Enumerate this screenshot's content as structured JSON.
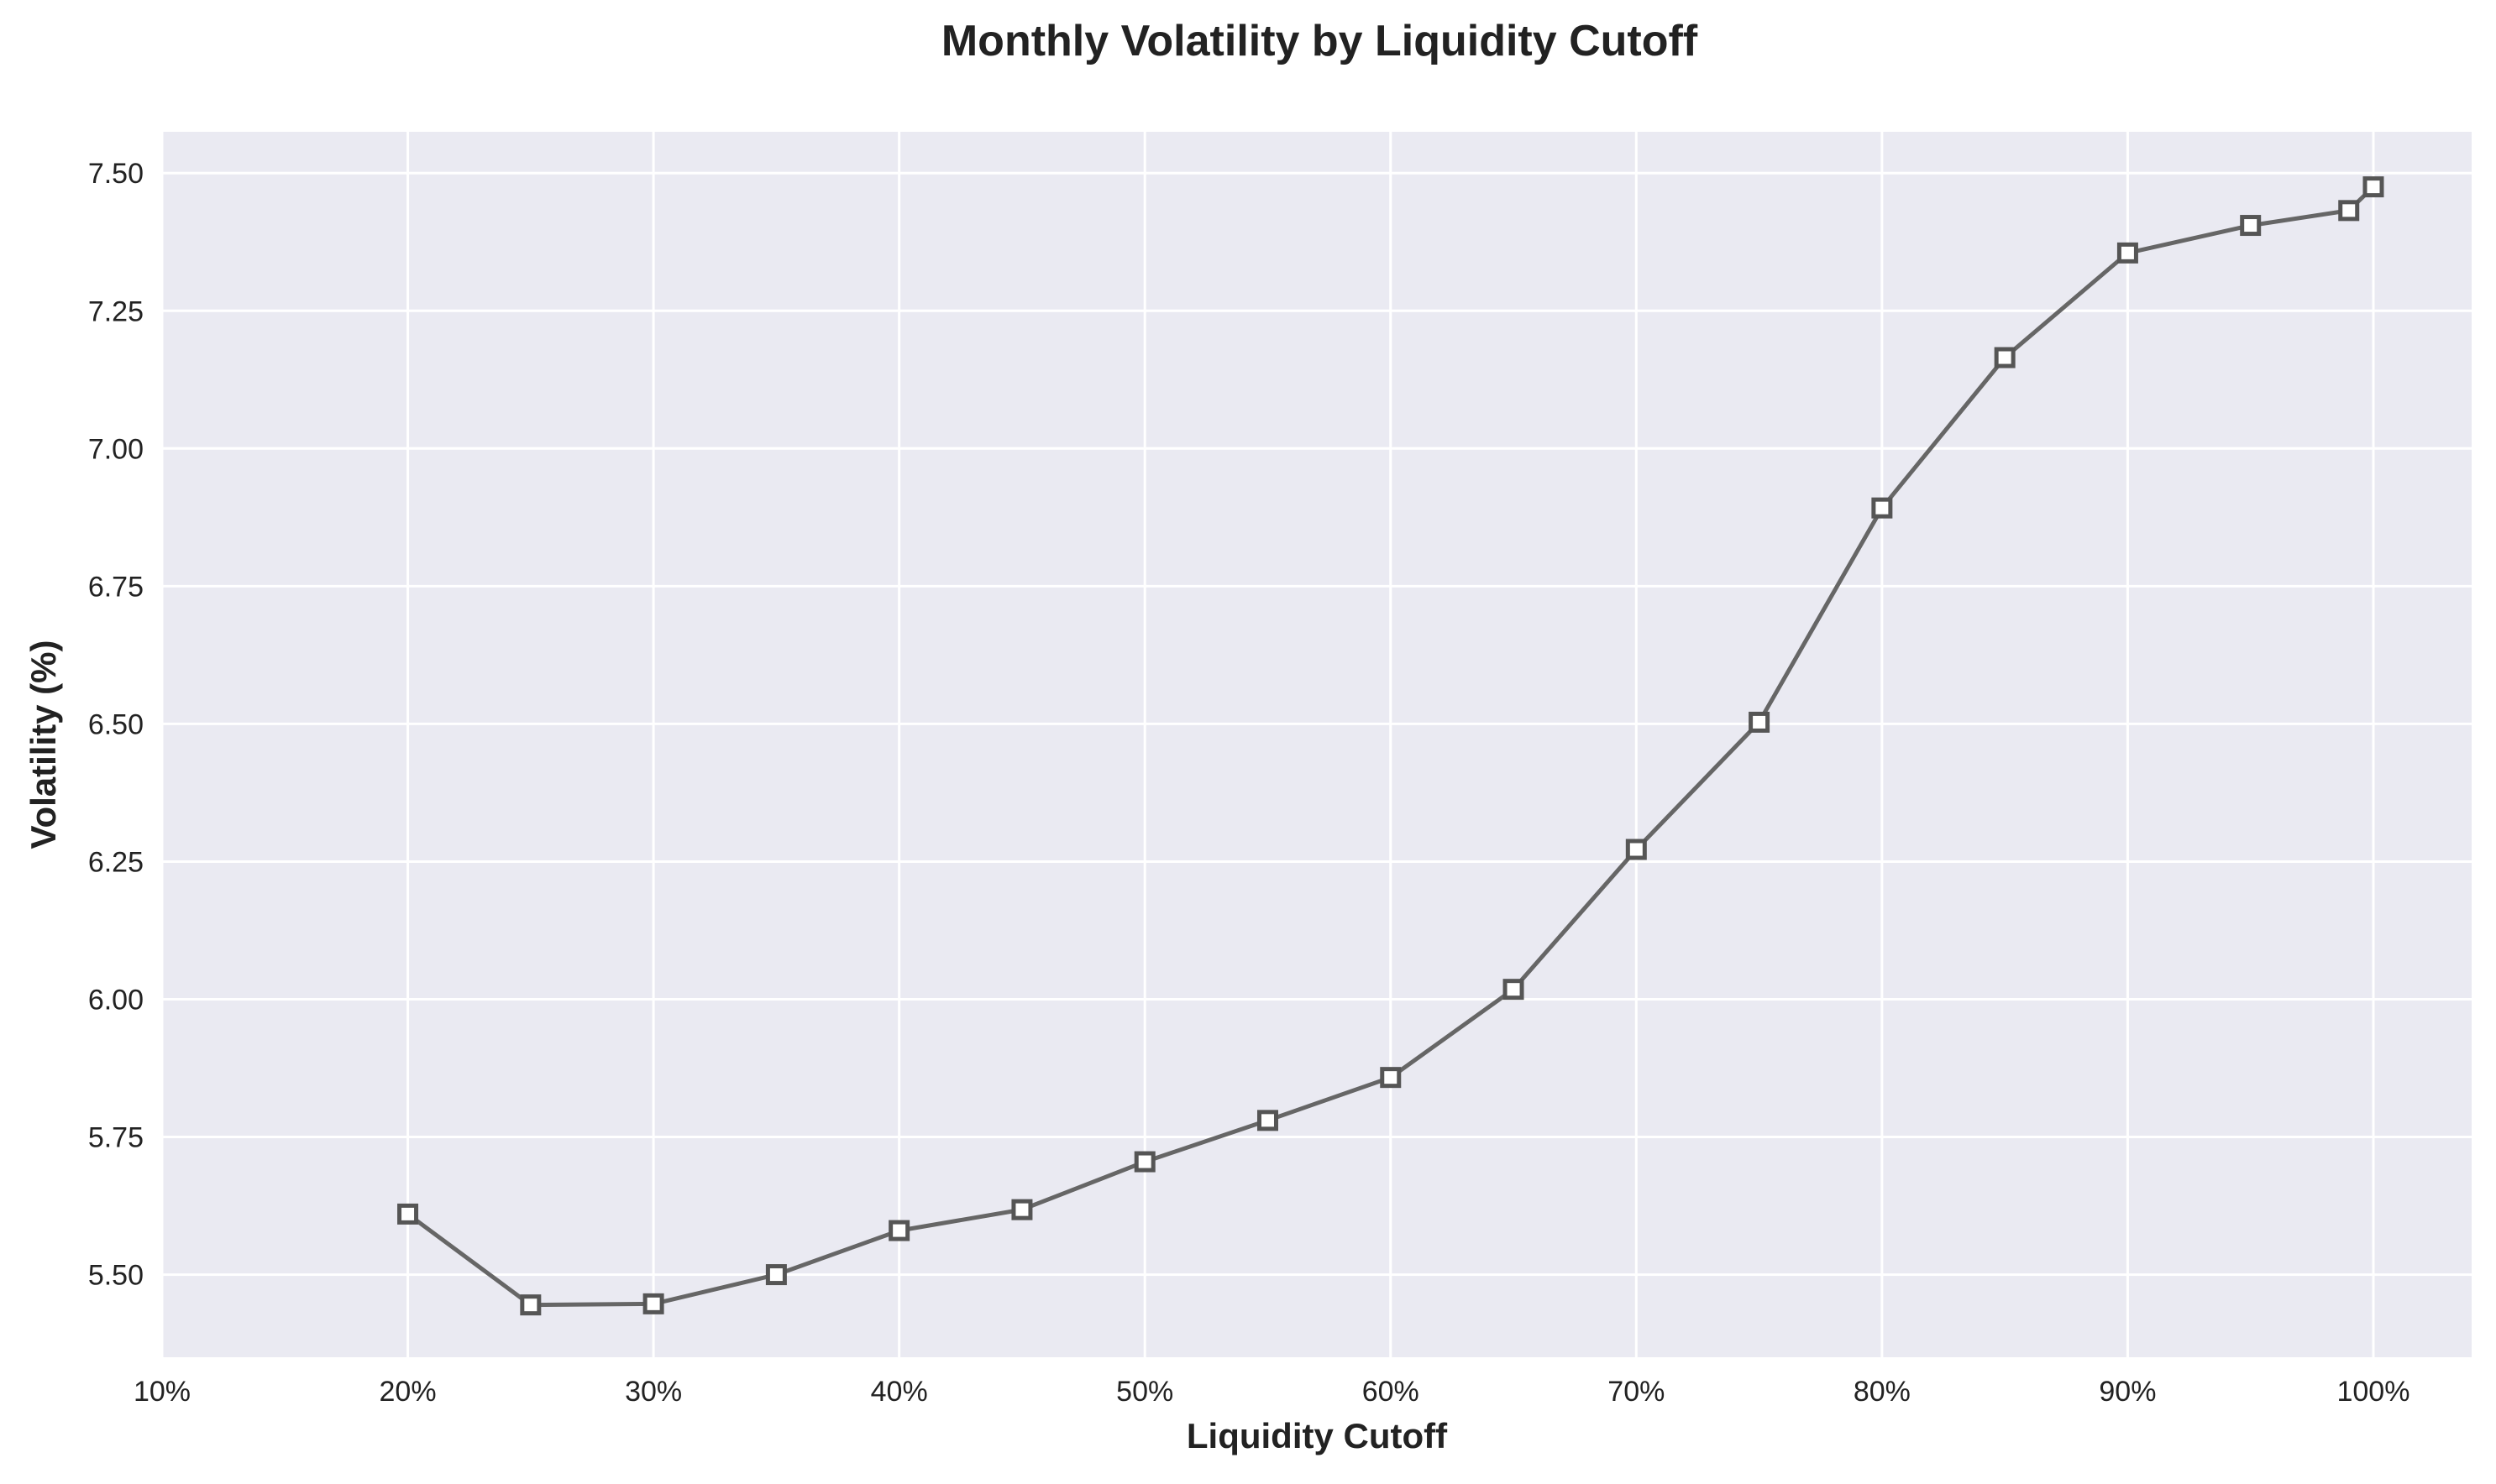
{
  "chart_data": {
    "type": "line",
    "title": "Monthly Volatility by Liquidity Cutoff",
    "xlabel": "Liquidity Cutoff",
    "ylabel": "Volatility (%)",
    "xlim": [
      10,
      104
    ],
    "ylim": [
      5.35,
      7.575
    ],
    "x_ticks": [
      10,
      20,
      30,
      40,
      50,
      60,
      70,
      80,
      90,
      100
    ],
    "x_tick_labels": [
      "10%",
      "20%",
      "30%",
      "40%",
      "50%",
      "60%",
      "70%",
      "80%",
      "90%",
      "100%"
    ],
    "y_ticks": [
      5.5,
      5.75,
      6.0,
      6.25,
      6.5,
      6.75,
      7.0,
      7.25,
      7.5
    ],
    "y_tick_labels": [
      "5.50",
      "5.75",
      "6.00",
      "6.25",
      "6.50",
      "6.75",
      "7.00",
      "7.25",
      "7.50"
    ],
    "grid": true,
    "series": [
      {
        "x": [
          20,
          25,
          30,
          35,
          40,
          45,
          50,
          55,
          60,
          65,
          70,
          75,
          80,
          85,
          90,
          95,
          99,
          100
        ],
        "values": [
          5.61,
          5.445,
          5.447,
          5.5,
          5.58,
          5.618,
          5.705,
          5.78,
          5.858,
          6.018,
          6.272,
          6.503,
          6.892,
          7.165,
          7.355,
          7.405,
          7.432,
          7.475
        ]
      }
    ],
    "colors": {
      "line": "#666666",
      "marker_edge": "#555555",
      "marker_face": "#ffffff",
      "plot_background": "#eaeaf2",
      "grid": "#ffffff",
      "text": "#222222"
    }
  }
}
